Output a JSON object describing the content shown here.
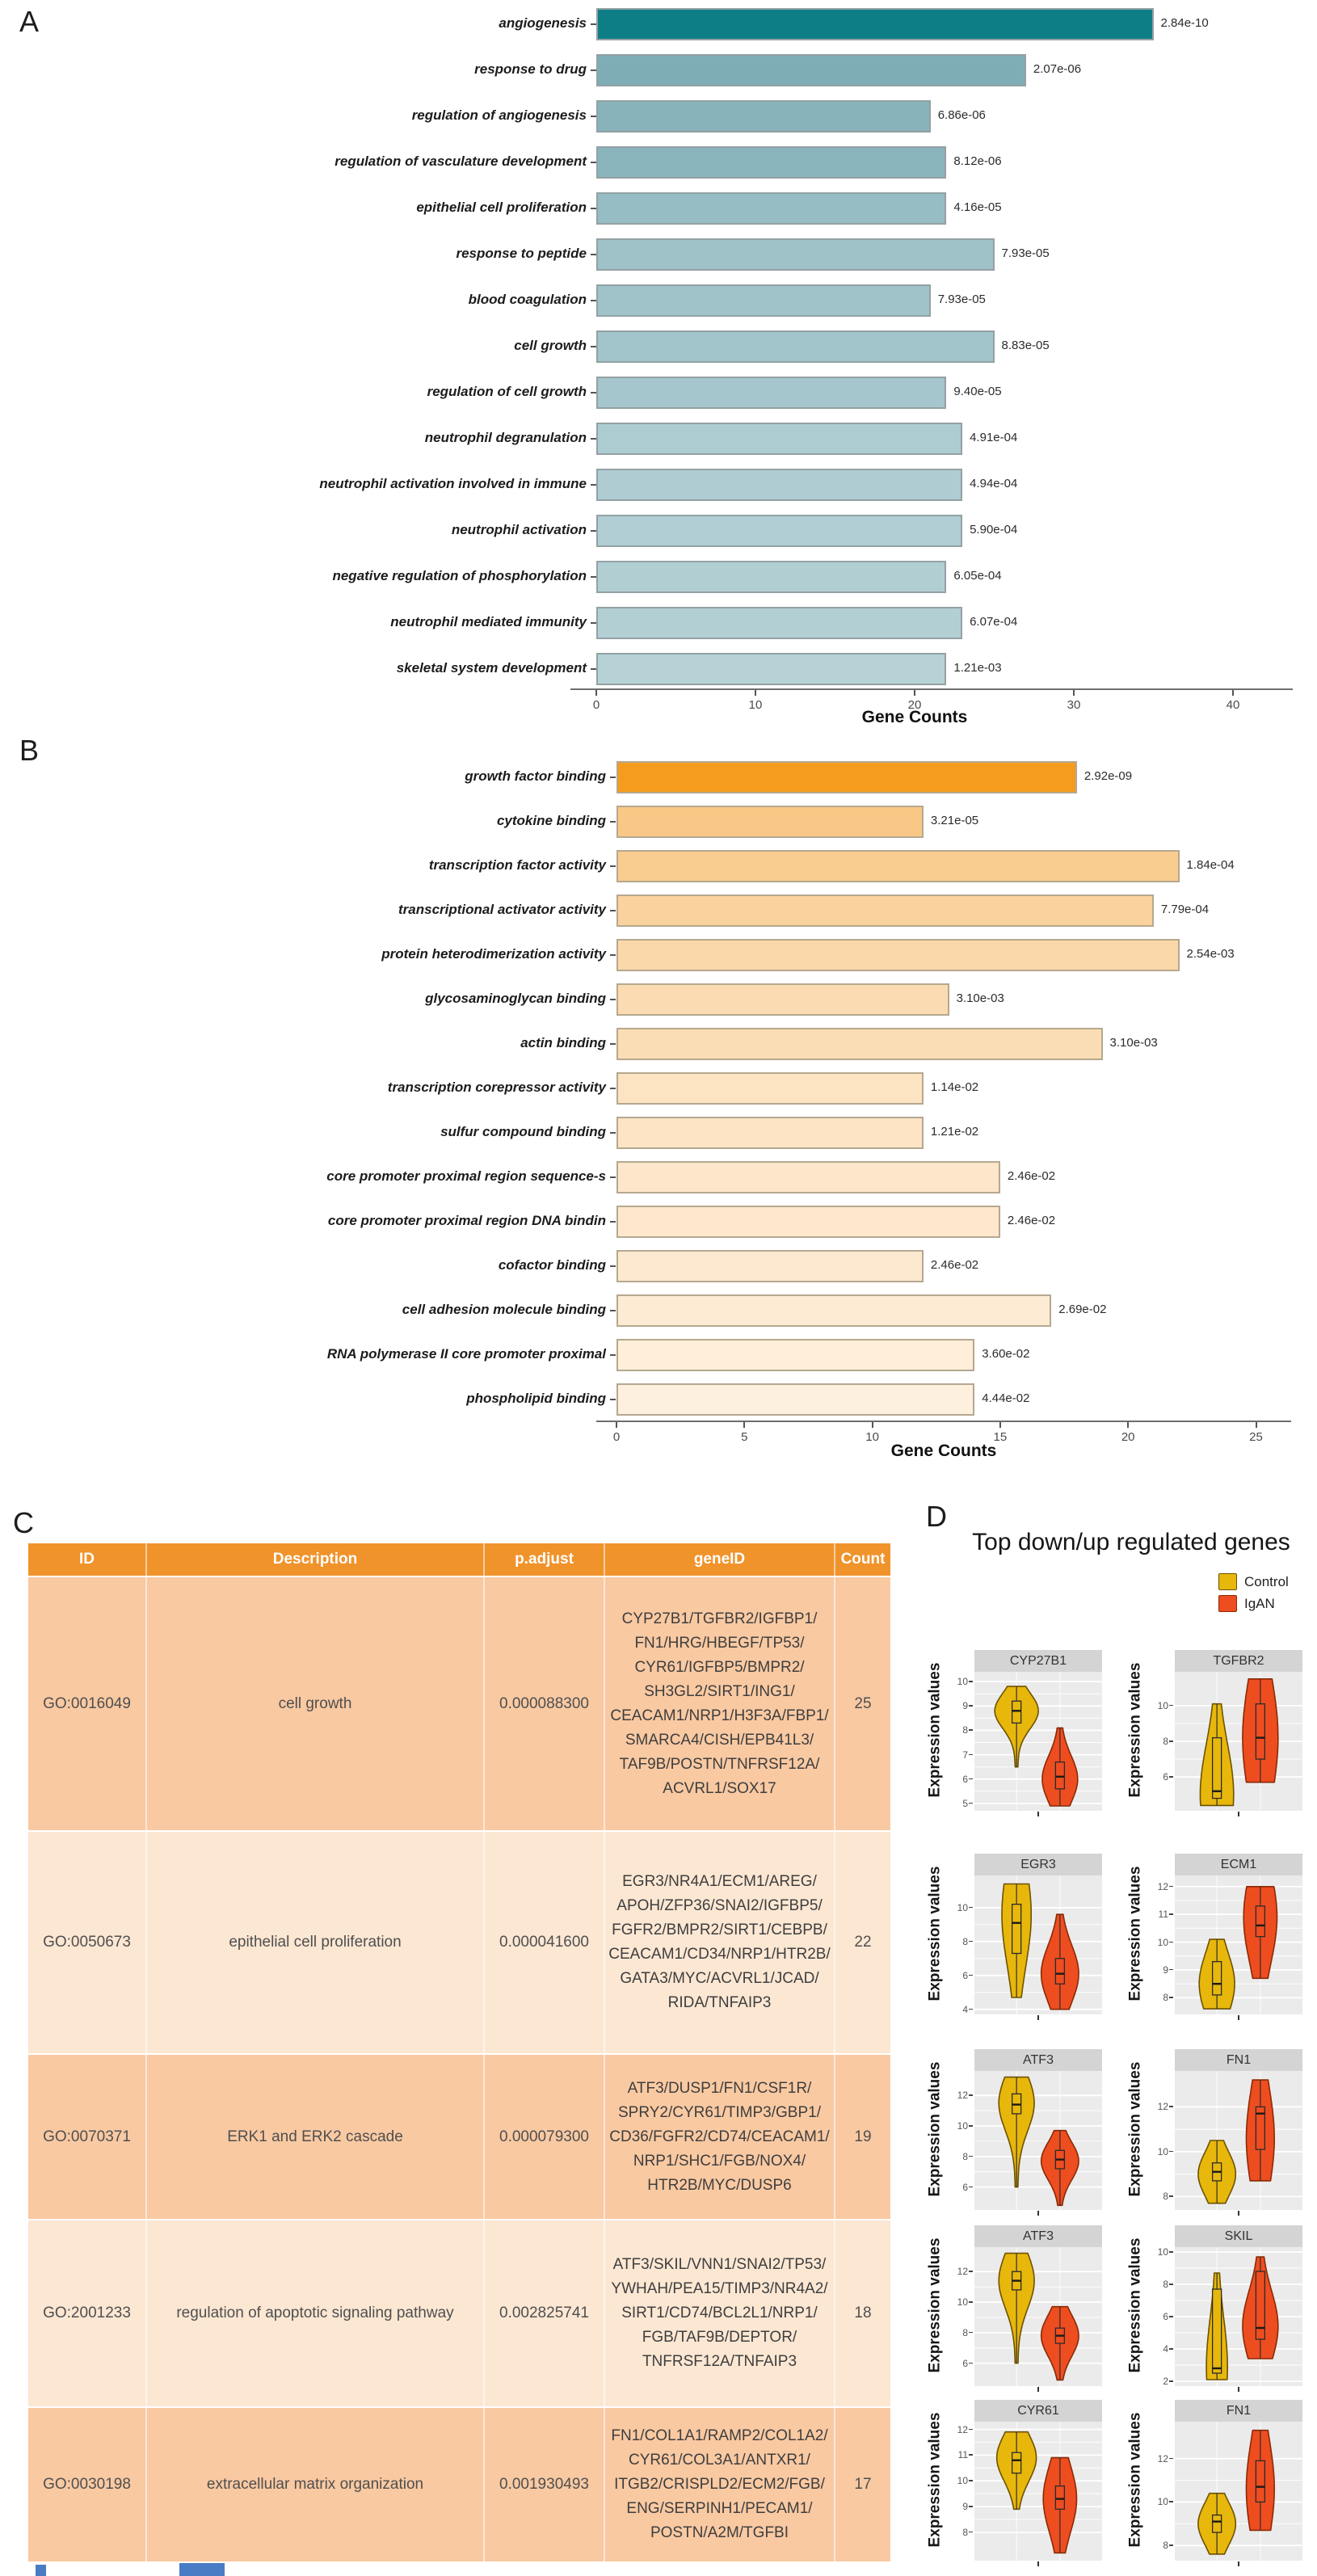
{
  "figure": {
    "panel_a_label": "A",
    "panel_b_label": "B",
    "panel_c_label": "C",
    "panel_d_label": "D"
  },
  "chart_data": [
    {
      "id": "A",
      "type": "bar",
      "orientation": "horizontal",
      "xlabel": "Gene Counts",
      "xticks": [
        0,
        10,
        20,
        30,
        40
      ],
      "xlim": [
        0,
        42
      ],
      "legend_position": "none",
      "categories": [
        "angiogenesis",
        "response to drug",
        "regulation of angiogenesis",
        "regulation of vasculature development",
        "epithelial cell proliferation",
        "response to peptide",
        "blood coagulation",
        "cell growth",
        "regulation of cell growth",
        "neutrophil degranulation",
        "neutrophil activation involved in immune",
        "neutrophil activation",
        "negative regulation of phosphorylation",
        "neutrophil mediated immunity",
        "skeletal system development"
      ],
      "values": [
        35,
        27,
        21,
        22,
        22,
        25,
        21,
        25,
        22,
        23,
        23,
        23,
        22,
        23,
        22
      ],
      "p_value_labels": [
        "2.84e-10",
        "2.07e-06",
        "6.86e-06",
        "8.12e-06",
        "4.16e-05",
        "7.93e-05",
        "7.93e-05",
        "8.83e-05",
        "9.40e-05",
        "4.91e-04",
        "4.94e-04",
        "5.90e-04",
        "6.05e-04",
        "6.07e-04",
        "1.21e-03"
      ],
      "colors": [
        "#0e7e86",
        "#7fadb6",
        "#88b3bb",
        "#8ab4bc",
        "#97bdc4",
        "#9fc2c8",
        "#9fc3c9",
        "#a2c5cb",
        "#a4c6cc",
        "#adccd1",
        "#aeccd2",
        "#b0ced3",
        "#b1ced3",
        "#b2cfd4",
        "#b6d2d6"
      ]
    },
    {
      "id": "B",
      "type": "bar",
      "orientation": "horizontal",
      "xlabel": "Gene Counts",
      "xticks": [
        0,
        5,
        10,
        15,
        20,
        25
      ],
      "xlim": [
        0,
        26
      ],
      "legend_position": "none",
      "categories": [
        "growth factor binding",
        "cytokine binding",
        "transcription factor activity",
        "transcriptional activator activity",
        "protein heterodimerization activity",
        "glycosaminoglycan binding",
        "actin binding",
        "transcription corepressor activity",
        "sulfur compound binding",
        "core promoter proximal region sequence-s",
        "core promoter proximal region DNA bindin",
        "cofactor binding",
        "cell adhesion molecule binding",
        "RNA polymerase II core promoter proximal",
        "phospholipid binding"
      ],
      "values": [
        18,
        12,
        22,
        21,
        22,
        13,
        19,
        12,
        12,
        15,
        15,
        12,
        17,
        14,
        14
      ],
      "p_value_labels": [
        "2.92e-09",
        "3.21e-05",
        "1.84e-04",
        "7.79e-04",
        "2.54e-03",
        "3.10e-03",
        "3.10e-03",
        "1.14e-02",
        "1.21e-02",
        "2.46e-02",
        "2.46e-02",
        "2.46e-02",
        "2.69e-02",
        "3.60e-02",
        "4.44e-02"
      ],
      "colors": [
        "#f59c1f",
        "#f9c886",
        "#f9cc90",
        "#fad29d",
        "#fbd8aa",
        "#fbdcb2",
        "#fbddb5",
        "#fce3c1",
        "#fce4c5",
        "#fde7cb",
        "#fde8cd",
        "#fde9cf",
        "#fdebd4",
        "#feeeda",
        "#fef0de"
      ]
    },
    {
      "id": "D",
      "type": "violin",
      "title": "Top down/up regulated genes",
      "ylabel": "Expression values",
      "legend_position": "top-right",
      "legend": [
        {
          "label": "Control",
          "color": "#e7b70c"
        },
        {
          "label": "IgAN",
          "color": "#ee4d20"
        }
      ],
      "subplots": [
        {
          "gene": "CYP27B1",
          "ylim": [
            4.7,
            10.4
          ],
          "yticks": [
            5,
            6,
            7,
            8,
            9,
            10
          ],
          "control": {
            "lo": 6.5,
            "hi": 9.8,
            "bulge": 8.8,
            "maxw": 1.0,
            "spread": 0.22,
            "q1": 8.3,
            "median": 8.8,
            "q3": 9.2
          },
          "igan": {
            "lo": 4.9,
            "hi": 8.1,
            "bulge": 6.0,
            "maxw": 0.8,
            "spread": 0.3,
            "q1": 5.6,
            "median": 6.1,
            "q3": 6.7
          }
        },
        {
          "gene": "TGFBR2",
          "ylim": [
            4.1,
            11.9
          ],
          "yticks": [
            6,
            8,
            10
          ],
          "control": {
            "lo": 4.4,
            "hi": 10.1,
            "bulge": 5.0,
            "maxw": 0.75,
            "spread": 0.5,
            "q1": 4.8,
            "median": 5.2,
            "q3": 8.2
          },
          "igan": {
            "lo": 5.7,
            "hi": 11.5,
            "bulge": 8.2,
            "maxw": 0.8,
            "spread": 0.6,
            "q1": 7.0,
            "median": 8.2,
            "q3": 10.1
          }
        },
        {
          "gene": "EGR3",
          "ylim": [
            3.7,
            11.9
          ],
          "yticks": [
            4,
            6,
            8,
            10
          ],
          "control": {
            "lo": 4.7,
            "hi": 11.4,
            "bulge": 9.6,
            "maxw": 0.65,
            "spread": 0.45,
            "q1": 7.3,
            "median": 9.1,
            "q3": 10.2
          },
          "igan": {
            "lo": 4.0,
            "hi": 9.6,
            "bulge": 6.1,
            "maxw": 0.85,
            "spread": 0.3,
            "q1": 5.5,
            "median": 6.1,
            "q3": 7.0
          }
        },
        {
          "gene": "ECM1",
          "ylim": [
            7.4,
            12.4
          ],
          "yticks": [
            8,
            9,
            10,
            11,
            12
          ],
          "control": {
            "lo": 7.6,
            "hi": 10.1,
            "bulge": 8.5,
            "maxw": 0.8,
            "spread": 0.45,
            "q1": 8.1,
            "median": 8.5,
            "q3": 9.3
          },
          "igan": {
            "lo": 8.7,
            "hi": 12.0,
            "bulge": 10.9,
            "maxw": 0.75,
            "spread": 0.5,
            "q1": 10.2,
            "median": 10.6,
            "q3": 11.3
          }
        },
        {
          "gene": "ATF3",
          "ylim": [
            4.5,
            13.6
          ],
          "yticks": [
            6,
            8,
            10,
            12
          ],
          "control": {
            "lo": 6.0,
            "hi": 13.2,
            "bulge": 11.5,
            "maxw": 0.8,
            "spread": 0.25,
            "q1": 10.8,
            "median": 11.4,
            "q3": 12.1
          },
          "igan": {
            "lo": 4.8,
            "hi": 9.7,
            "bulge": 7.7,
            "maxw": 0.85,
            "spread": 0.25,
            "q1": 7.2,
            "median": 7.8,
            "q3": 8.4
          }
        },
        {
          "gene": "FN1",
          "ylim": [
            7.4,
            13.6
          ],
          "yticks": [
            8,
            10,
            12
          ],
          "control": {
            "lo": 7.7,
            "hi": 10.5,
            "bulge": 9.0,
            "maxw": 0.85,
            "spread": 0.35,
            "q1": 8.7,
            "median": 9.1,
            "q3": 9.5
          },
          "igan": {
            "lo": 8.7,
            "hi": 13.2,
            "bulge": 10.6,
            "maxw": 0.62,
            "spread": 0.5,
            "q1": 10.1,
            "median": 11.7,
            "q3": 12.0
          }
        },
        {
          "gene": "ATF3",
          "ylim": [
            4.5,
            13.6
          ],
          "yticks": [
            6,
            8,
            10,
            12
          ],
          "control": {
            "lo": 6.0,
            "hi": 13.2,
            "bulge": 11.4,
            "maxw": 0.8,
            "spread": 0.25,
            "q1": 10.8,
            "median": 11.4,
            "q3": 12.0
          },
          "igan": {
            "lo": 4.9,
            "hi": 9.7,
            "bulge": 7.8,
            "maxw": 0.85,
            "spread": 0.28,
            "q1": 7.3,
            "median": 7.8,
            "q3": 8.3
          }
        },
        {
          "gene": "SKIL",
          "ylim": [
            1.7,
            10.3
          ],
          "yticks": [
            2,
            4,
            6,
            8,
            10
          ],
          "control": {
            "lo": 2.1,
            "hi": 8.7,
            "bulge": 2.9,
            "maxw": 0.45,
            "spread": 0.45,
            "q1": 2.5,
            "median": 2.8,
            "q3": 7.7
          },
          "igan": {
            "lo": 3.4,
            "hi": 9.7,
            "bulge": 5.4,
            "maxw": 0.8,
            "spread": 0.35,
            "q1": 4.6,
            "median": 5.3,
            "q3": 8.8
          }
        },
        {
          "gene": "CYR61",
          "ylim": [
            6.9,
            12.3
          ],
          "yticks": [
            8,
            9,
            10,
            11,
            12
          ],
          "control": {
            "lo": 8.9,
            "hi": 11.9,
            "bulge": 10.9,
            "maxw": 0.9,
            "spread": 0.3,
            "q1": 10.3,
            "median": 10.8,
            "q3": 11.1
          },
          "igan": {
            "lo": 7.2,
            "hi": 10.9,
            "bulge": 9.3,
            "maxw": 0.75,
            "spread": 0.35,
            "q1": 8.9,
            "median": 9.3,
            "q3": 9.8
          }
        },
        {
          "gene": "FN1",
          "ylim": [
            7.3,
            13.7
          ],
          "yticks": [
            8,
            10,
            12
          ],
          "control": {
            "lo": 7.6,
            "hi": 10.4,
            "bulge": 9.0,
            "maxw": 0.85,
            "spread": 0.35,
            "q1": 8.6,
            "median": 9.1,
            "q3": 9.4
          },
          "igan": {
            "lo": 8.7,
            "hi": 13.3,
            "bulge": 10.6,
            "maxw": 0.62,
            "spread": 0.5,
            "q1": 10.0,
            "median": 10.7,
            "q3": 11.9
          }
        }
      ]
    }
  ],
  "table": {
    "headers": [
      "ID",
      "Description",
      "p.adjust",
      "geneID",
      "Count"
    ],
    "header_bg": "#f0932b",
    "row_bg_odd": "#f9c9a2",
    "row_bg_even": "#fce7d3",
    "rows": [
      {
        "id": "GO:0016049",
        "description": "cell growth",
        "p_adjust": "0.000088300",
        "gene_id": "CYP27B1/TGFBR2/IGFBP1/FN1/HRG/HBEGF/TP53/CYR61/IGFBP5/BMPR2/SH3GL2/SIRT1/ING1/CEACAM1/NRP1/H3F3A/FBP1/SMARCA4/CISH/EPB41L3/TAF9B/POSTN/TNFRSF12A/ACVRL1/SOX17",
        "count": "25"
      },
      {
        "id": "GO:0050673",
        "description": "epithelial cell proliferation",
        "p_adjust": "0.000041600",
        "gene_id": "EGR3/NR4A1/ECM1/AREG/APOH/ZFP36/SNAI2/IGFBP5/FGFR2/BMPR2/SIRT1/CEBPB/CEACAM1/CD34/NRP1/HTR2B/GATA3/MYC/ACVRL1/JCAD/RIDA/TNFAIP3",
        "count": "22"
      },
      {
        "id": "GO:0070371",
        "description": "ERK1 and ERK2 cascade",
        "p_adjust": "0.000079300",
        "gene_id": "ATF3/DUSP1/FN1/CSF1R/SPRY2/CYR61/TIMP3/GBP1/CD36/FGFR2/CD74/CEACAM1/NRP1/SHC1/FGB/NOX4/HTR2B/MYC/DUSP6",
        "count": "19"
      },
      {
        "id": "GO:2001233",
        "description": "regulation of apoptotic signaling pathway",
        "p_adjust": "0.002825741",
        "gene_id": "ATF3/SKIL/VNN1/SNAI2/TP53/YWHAH/PEA15/TIMP3/NR4A2/SIRT1/CD74/BCL2L1/NRP1/FGB/TAF9B/DEPTOR/TNFRSF12A/TNFAIP3",
        "count": "18"
      },
      {
        "id": "GO:0030198",
        "description": "extracellular matrix organization",
        "p_adjust": "0.001930493",
        "gene_id": "FN1/COL1A1/RAMP2/COL1A2/CYR61/COL3A1/ANTXR1/ITGB2/CRISPLD2/ECM2/FGB/ENG/SERPINH1/PECAM1/POSTN/A2M/TGFBI",
        "count": "17"
      }
    ]
  }
}
